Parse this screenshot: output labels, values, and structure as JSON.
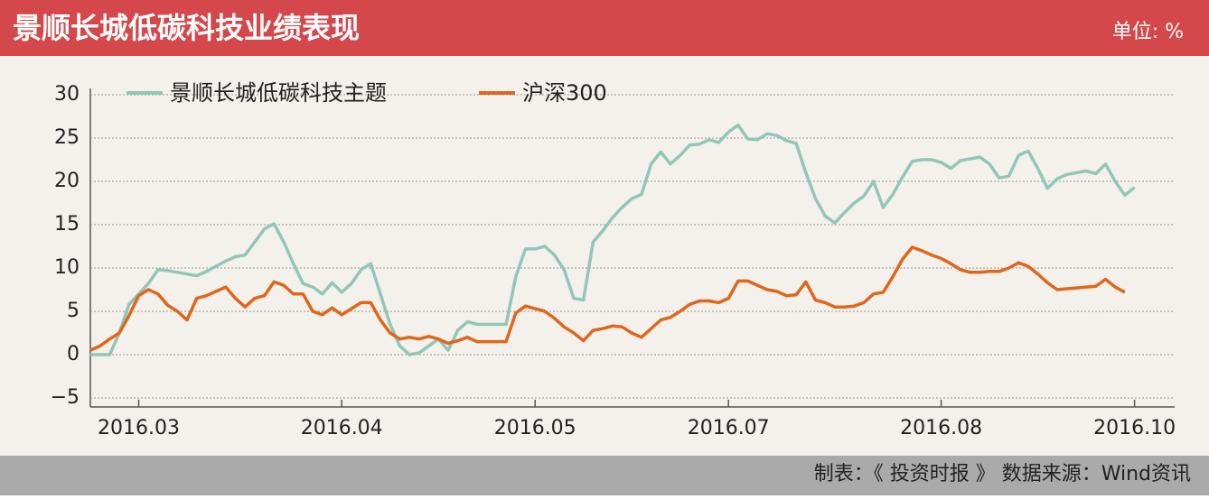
{
  "header": {
    "title": "景顺长城低碳科技业绩表现",
    "unit": "单位: %"
  },
  "footer": {
    "source": "制表：《 投资时报 》  数据来源：Wind资讯"
  },
  "chart_data": {
    "type": "line",
    "categories": [
      null,
      null,
      null,
      null,
      null,
      "2016.03",
      null,
      null,
      null,
      null,
      null,
      null,
      null,
      null,
      null,
      null,
      null,
      null,
      null,
      null,
      null,
      null,
      null,
      null,
      null,
      null,
      "2016.04",
      null,
      null,
      null,
      null,
      null,
      null,
      null,
      null,
      null,
      null,
      null,
      null,
      null,
      null,
      null,
      null,
      null,
      null,
      null,
      "2016.05",
      null,
      null,
      null,
      null,
      null,
      null,
      null,
      null,
      null,
      null,
      null,
      null,
      null,
      null,
      null,
      null,
      null,
      null,
      null,
      "2016.07",
      null,
      null,
      null,
      null,
      null,
      null,
      null,
      null,
      null,
      null,
      null,
      null,
      null,
      null,
      null,
      null,
      null,
      null,
      null,
      null,
      null,
      "2016.08",
      null,
      null,
      null,
      null,
      null,
      null,
      null,
      null,
      null,
      null,
      null,
      null,
      null,
      null,
      null,
      null,
      null,
      null,
      null,
      "2016.10"
    ],
    "series": [
      {
        "name": "景顺长城低碳科技主题",
        "color": "#92c6b9",
        "values": [
          0,
          0,
          0,
          2.5,
          5.8,
          7,
          8.2,
          9.8,
          9.7,
          9.5,
          9.3,
          9.1,
          9.6,
          10.2,
          10.8,
          11.3,
          11.5,
          13,
          14.5,
          15.1,
          13,
          10.5,
          8.2,
          7.8,
          7,
          8.3,
          7.2,
          8.2,
          9.8,
          10.5,
          7,
          3.5,
          1,
          0,
          0.2,
          1,
          1.8,
          0.5,
          2.8,
          3.8,
          3.5,
          3.5,
          3.5,
          3.5,
          9,
          12.2,
          12.2,
          12.5,
          11.5,
          9.8,
          6.5,
          6.3,
          13,
          14.3,
          15.8,
          17,
          18,
          18.5,
          22,
          23.4,
          22,
          23,
          24.2,
          24.3,
          24.8,
          24.5,
          25.7,
          26.5,
          24.9,
          24.8,
          25.5,
          25.3,
          24.7,
          24.4,
          21,
          18,
          16,
          15.2,
          16.4,
          17.5,
          18.3,
          20,
          17,
          18.5,
          20.5,
          22.3,
          22.5,
          22.5,
          22.2,
          21.5,
          22.4,
          22.6,
          22.8,
          22,
          20.4,
          20.6,
          23,
          23.5,
          21.5,
          19.2,
          20.3,
          20.8,
          21,
          21.2,
          20.9,
          22,
          20,
          18.4,
          19.3
        ]
      },
      {
        "name": "沪深300",
        "color": "#e0661a",
        "values": [
          0.5,
          1,
          1.8,
          2.5,
          4.5,
          6.8,
          7.5,
          7,
          5.7,
          5,
          4,
          6.5,
          6.8,
          7.3,
          7.8,
          6.5,
          5.5,
          6.5,
          6.8,
          8.4,
          8,
          7,
          7,
          5,
          4.6,
          5.4,
          4.6,
          5.3,
          6,
          6,
          4,
          2.5,
          1.8,
          2,
          1.8,
          2.1,
          1.8,
          1.3,
          1.6,
          2,
          1.5,
          1.5,
          1.5,
          1.5,
          4.8,
          5.6,
          5.3,
          5,
          4.2,
          3.2,
          2.5,
          1.6,
          2.8,
          3,
          3.3,
          3.2,
          2.5,
          2,
          3,
          4,
          4.3,
          5,
          5.8,
          6.2,
          6.2,
          6,
          6.5,
          8.5,
          8.5,
          8,
          7.5,
          7.3,
          6.8,
          6.9,
          8.4,
          6.3,
          6,
          5.5,
          5.5,
          5.6,
          6,
          7,
          7.2,
          9,
          11,
          12.4,
          12,
          11.5,
          11.1,
          10.5,
          9.8,
          9.5,
          9.5,
          9.6,
          9.6,
          10,
          10.6,
          10.2,
          9.3,
          8.3,
          7.5,
          7.6,
          7.7,
          7.8,
          7.9,
          8.7,
          7.8,
          7.2,
          null
        ]
      }
    ],
    "ylim": [
      -5,
      30
    ],
    "yticks": [
      {
        "value": -5,
        "label": "−5"
      },
      0,
      5,
      10,
      15,
      20,
      25,
      30
    ],
    "grid": true
  }
}
